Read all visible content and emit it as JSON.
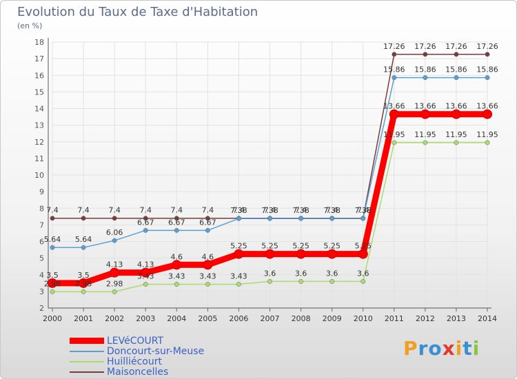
{
  "header": {
    "title": "Evolution du Taux de Taxe d'Habitation",
    "unit": "(en %)"
  },
  "logo": {
    "text": "Proxiti"
  },
  "chart_data": {
    "type": "line",
    "title": "Evolution du Taux de Taxe d'Habitation",
    "ylabel": "(en %)",
    "xlabel": "",
    "ylim": [
      2,
      18
    ],
    "legend_position": "bottom-left",
    "x": [
      "2000",
      "2001",
      "2002",
      "2003",
      "2004",
      "2005",
      "2006",
      "2007",
      "2008",
      "2009",
      "2010",
      "2011",
      "2012",
      "2013",
      "2014"
    ],
    "series": [
      {
        "name": "LEVéCOURT",
        "color": "#ff0000",
        "values": [
          3.5,
          3.5,
          4.13,
          4.13,
          4.6,
          4.6,
          5.25,
          5.25,
          5.25,
          5.25,
          5.25,
          13.66,
          13.66,
          13.66,
          13.66
        ],
        "labels": [
          "3.5",
          "3.5",
          "4.13",
          "4.13",
          "4.6",
          "4.6",
          "5.25",
          "5.25",
          "5.25",
          "5.25",
          "5.25",
          "13.66",
          "13.66",
          "13.66",
          "13.66"
        ]
      },
      {
        "name": "Doncourt-sur-Meuse",
        "color": "#5a9fd4",
        "values": [
          5.64,
          5.64,
          6.06,
          6.67,
          6.67,
          6.67,
          7.38,
          7.38,
          7.38,
          7.38,
          7.38,
          15.86,
          15.86,
          15.86,
          15.86
        ],
        "labels": [
          "5.64",
          "5.64",
          "6.06",
          "6.67",
          "6.67",
          "6.67",
          "7.38",
          "7.38",
          "7.38",
          "7.38",
          "7.38",
          "15.86",
          "15.86",
          "15.86",
          "15.86"
        ]
      },
      {
        "name": "Huilliécourt",
        "color": "#a8dc6e",
        "values": [
          2.98,
          2.98,
          2.98,
          3.43,
          3.43,
          3.43,
          3.43,
          3.6,
          3.6,
          3.6,
          3.6,
          11.95,
          11.95,
          11.95,
          11.95
        ],
        "labels": [
          "2.98",
          "2.98",
          "2.98",
          "3.43",
          "3.43",
          "3.43",
          "3.43",
          "3.6",
          "3.6",
          "3.6",
          "3.6",
          "11.95",
          "11.95",
          "11.95",
          "11.95"
        ]
      },
      {
        "name": "Maisoncelles",
        "color": "#7a3b3b",
        "values": [
          7.4,
          7.4,
          7.4,
          7.4,
          7.4,
          7.4,
          7.4,
          7.4,
          7.4,
          7.4,
          7.4,
          17.26,
          17.26,
          17.26,
          17.26
        ],
        "labels": [
          "7.4",
          "7.4",
          "7.4",
          "7.4",
          "7.4",
          "7.4",
          "7.4",
          "7.4",
          "7.4",
          "7.4",
          "7.4",
          "17.26",
          "17.26",
          "17.26",
          "17.26"
        ]
      }
    ]
  }
}
